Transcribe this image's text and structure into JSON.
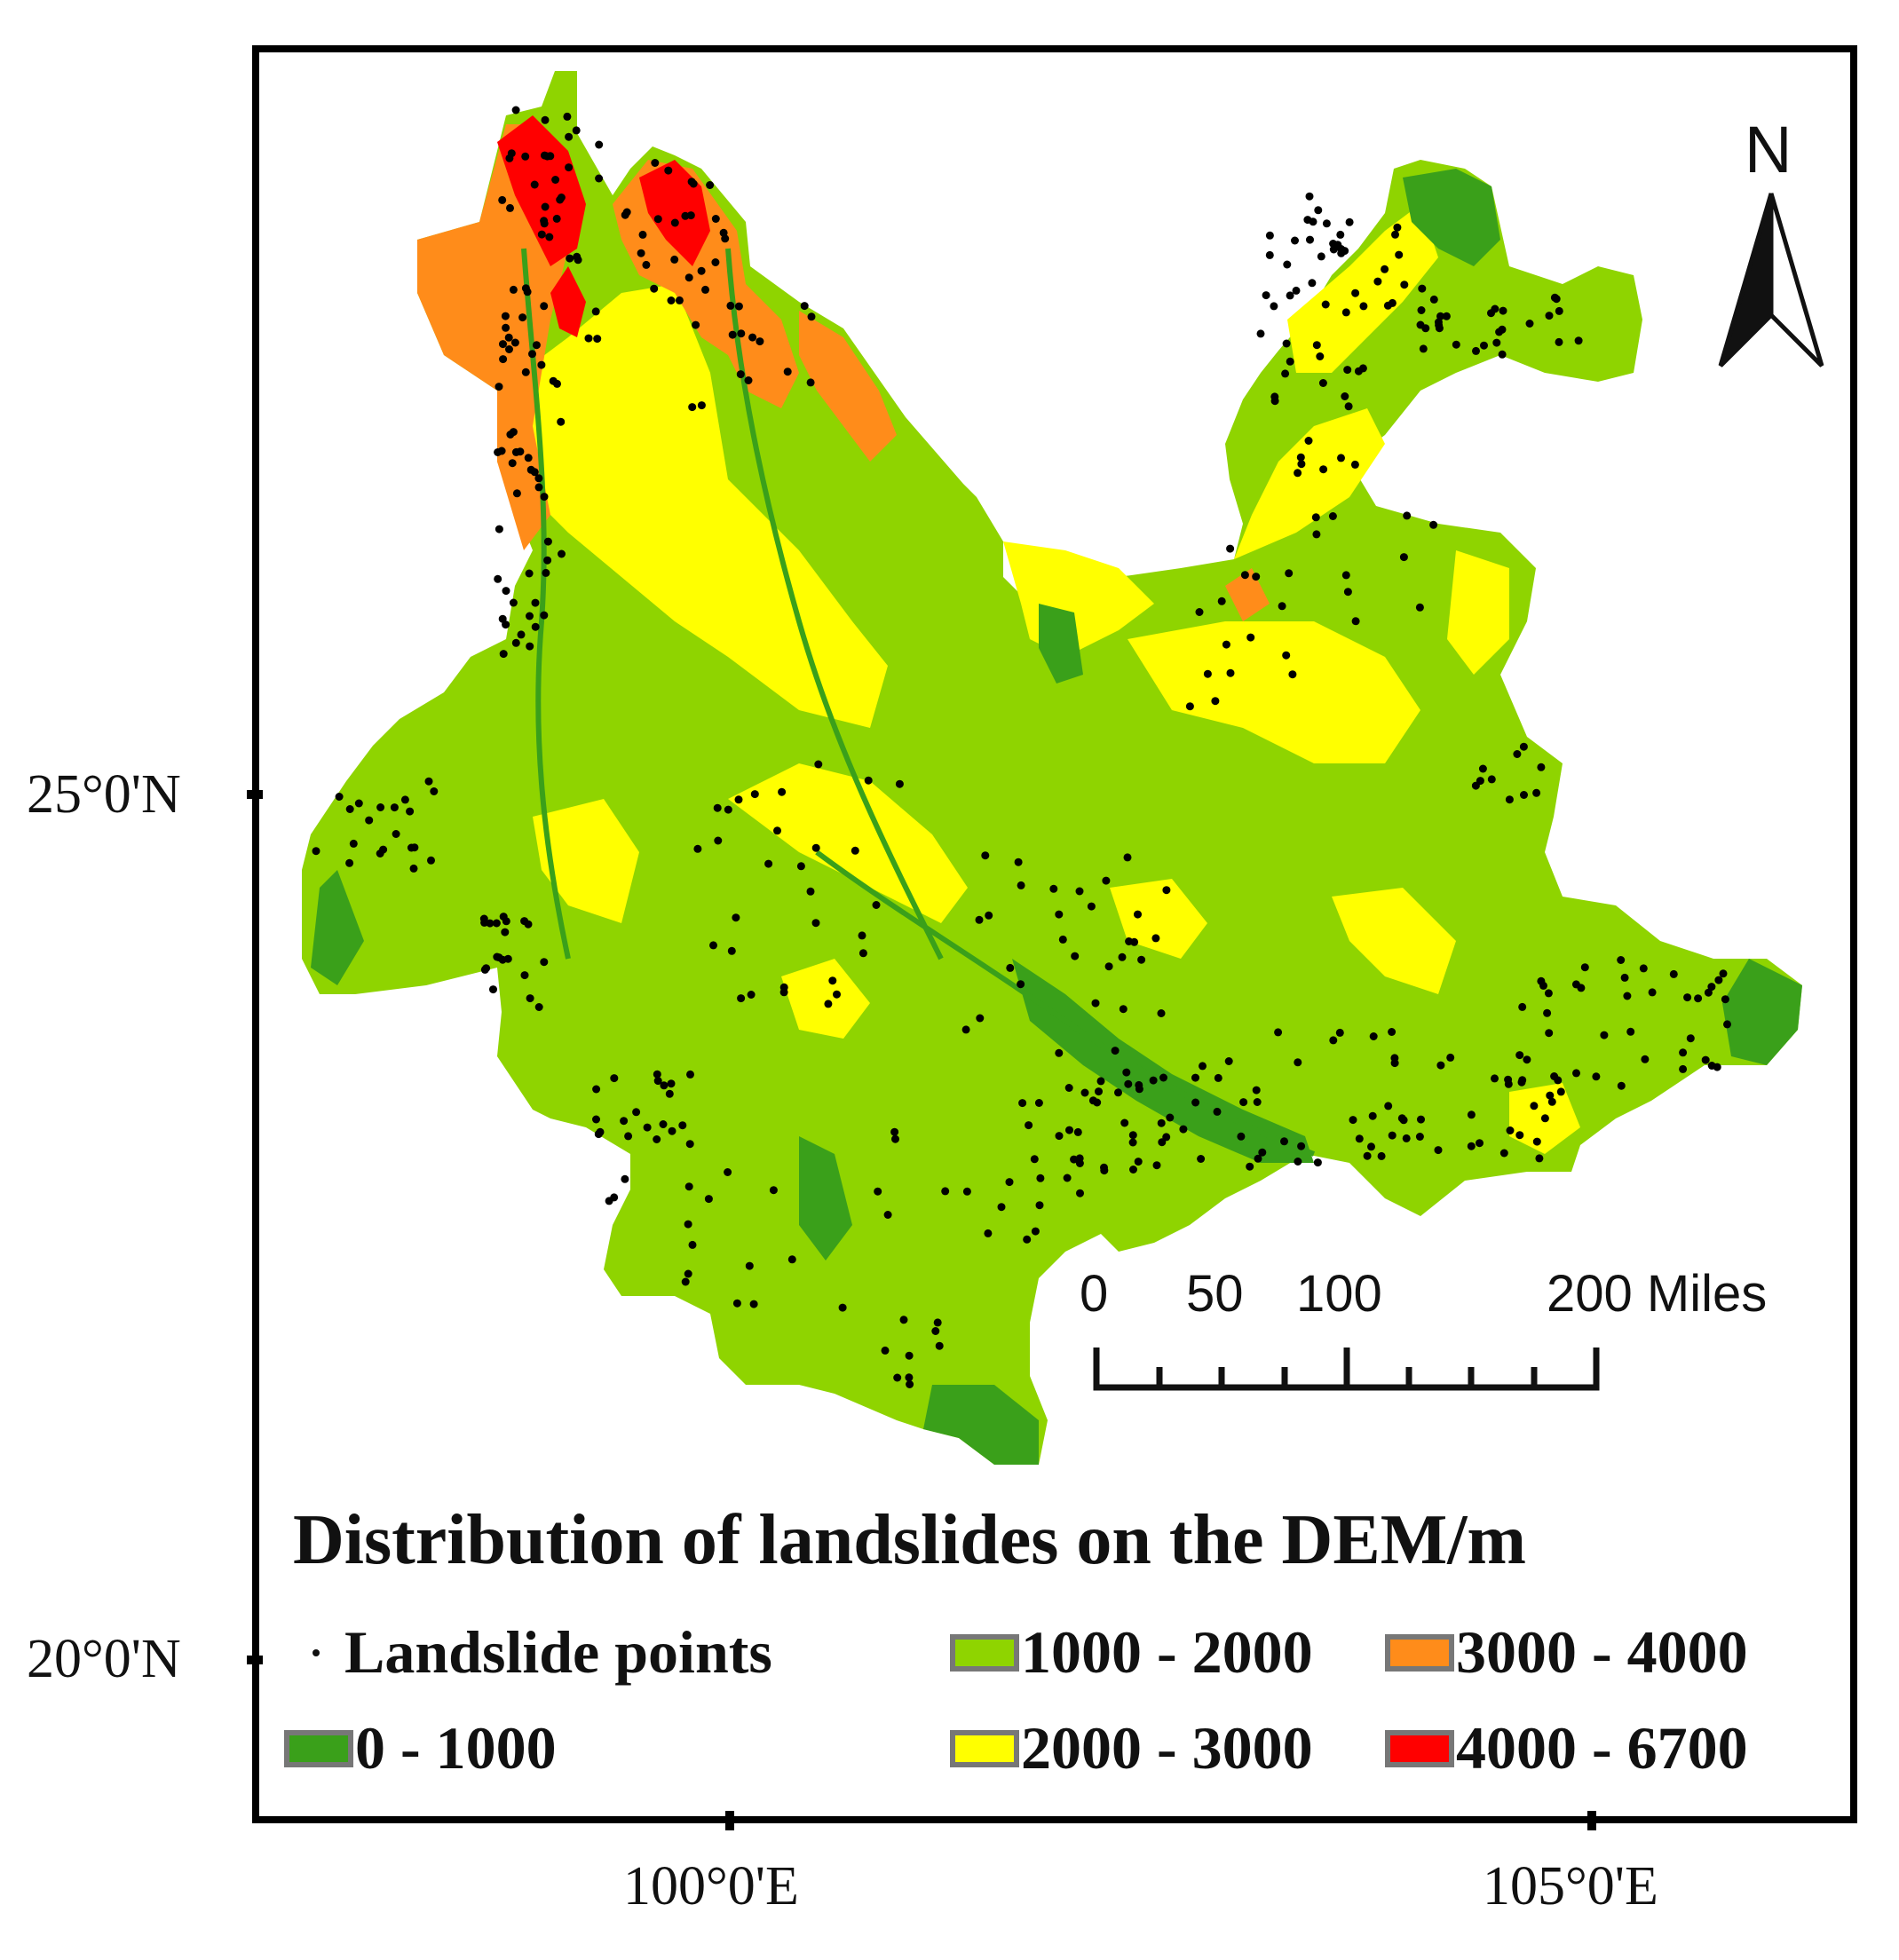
{
  "map": {
    "title": "Distribution of landslides on the DEM/m",
    "lat_labels": [
      "25°0'N",
      "20°0'N"
    ],
    "lon_labels": [
      "100°0'E",
      "105°0'E"
    ],
    "north_label": "N",
    "scale": {
      "labels": [
        "0",
        "50",
        "100",
        "200 Miles"
      ]
    },
    "legend": {
      "points_label": "Landslide points",
      "classes": [
        {
          "label": "0 - 1000",
          "color": "#3aa01a"
        },
        {
          "label": "1000 - 2000",
          "color": "#8fd400"
        },
        {
          "label": "2000 - 3000",
          "color": "#ffff00"
        },
        {
          "label": "3000 - 4000",
          "color": "#ff8c1a"
        },
        {
          "label": "4000 - 6700",
          "color": "#ff0000"
        }
      ]
    }
  }
}
